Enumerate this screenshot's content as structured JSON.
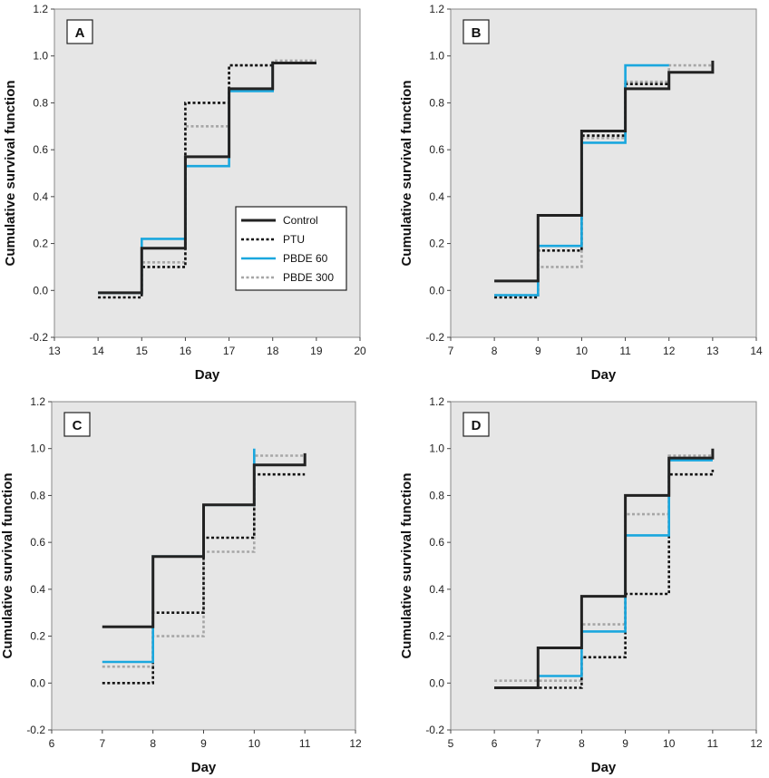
{
  "colors": {
    "plot_background": "#e6e6e6",
    "control": "#222222",
    "ptu": "#111111",
    "pbde60": "#1aa7de",
    "pbde300": "#a6a6a6"
  },
  "chart_data": [
    {
      "panel": "A",
      "type": "line",
      "step": true,
      "xlabel": "Day",
      "ylabel": "Cumulative survival function",
      "xlim": [
        13,
        20
      ],
      "ylim": [
        -0.2,
        1.2
      ],
      "xticks": [
        13,
        14,
        15,
        16,
        17,
        18,
        19,
        20
      ],
      "yticks": [
        "-0.2",
        "0.0",
        "0.2",
        "0.4",
        "0.6",
        "0.8",
        "1.0",
        "1.2"
      ],
      "legend": [
        "Control",
        "PTU",
        "PBDE 60",
        "PBDE 300"
      ],
      "legend_position": "lower-right",
      "series": [
        {
          "name": "Control",
          "x": [
            14,
            15,
            16,
            17,
            18,
            19
          ],
          "y": [
            -0.01,
            0.18,
            0.57,
            0.86,
            0.97,
            0.97
          ]
        },
        {
          "name": "PTU",
          "x": [
            14,
            15,
            16,
            17,
            18,
            19
          ],
          "y": [
            -0.03,
            0.1,
            0.8,
            0.96,
            0.97,
            0.97
          ]
        },
        {
          "name": "PBDE 60",
          "x": [
            14,
            15,
            16,
            17,
            18,
            19
          ],
          "y": [
            -0.01,
            0.22,
            0.53,
            0.85,
            0.97,
            0.97
          ]
        },
        {
          "name": "PBDE 300",
          "x": [
            14,
            15,
            16,
            17,
            18,
            19
          ],
          "y": [
            -0.01,
            0.12,
            0.7,
            0.96,
            0.98,
            0.98
          ]
        }
      ]
    },
    {
      "panel": "B",
      "type": "line",
      "step": true,
      "xlabel": "Day",
      "ylabel": "Cumulative survival function",
      "xlim": [
        7,
        14
      ],
      "ylim": [
        -0.2,
        1.2
      ],
      "xticks": [
        7,
        8,
        9,
        10,
        11,
        12,
        13,
        14
      ],
      "yticks": [
        "-0.2",
        "0.0",
        "0.2",
        "0.4",
        "0.6",
        "0.8",
        "1.0",
        "1.2"
      ],
      "series": [
        {
          "name": "Control",
          "x": [
            8,
            9,
            10,
            11,
            12,
            13
          ],
          "y": [
            0.04,
            0.32,
            0.68,
            0.86,
            0.93,
            0.98
          ]
        },
        {
          "name": "PTU",
          "x": [
            8,
            9,
            10,
            11,
            12
          ],
          "y": [
            -0.03,
            0.17,
            0.66,
            0.88,
            0.88
          ]
        },
        {
          "name": "PBDE 60",
          "x": [
            8,
            9,
            10,
            11,
            12
          ],
          "y": [
            -0.02,
            0.19,
            0.63,
            0.96,
            0.96
          ]
        },
        {
          "name": "PBDE 300",
          "x": [
            8,
            9,
            10,
            11,
            12,
            13
          ],
          "y": [
            -0.02,
            0.1,
            0.65,
            0.89,
            0.96,
            0.96
          ]
        }
      ]
    },
    {
      "panel": "C",
      "type": "line",
      "step": true,
      "xlabel": "Day",
      "ylabel": "Cumulative survival function",
      "xlim": [
        6,
        12
      ],
      "ylim": [
        -0.2,
        1.2
      ],
      "xticks": [
        6,
        7,
        8,
        9,
        10,
        11,
        12
      ],
      "yticks": [
        "-0.2",
        "0.0",
        "0.2",
        "0.4",
        "0.6",
        "0.8",
        "1.0",
        "1.2"
      ],
      "series": [
        {
          "name": "Control",
          "x": [
            7,
            8,
            9,
            10,
            11
          ],
          "y": [
            0.24,
            0.54,
            0.76,
            0.93,
            0.98
          ]
        },
        {
          "name": "PTU",
          "x": [
            7,
            8,
            9,
            10,
            11
          ],
          "y": [
            0.0,
            0.3,
            0.62,
            0.89,
            0.89
          ]
        },
        {
          "name": "PBDE 60",
          "x": [
            7,
            8,
            9,
            10
          ],
          "y": [
            0.09,
            0.54,
            0.76,
            1.0
          ]
        },
        {
          "name": "PBDE 300",
          "x": [
            7,
            8,
            9,
            10,
            11
          ],
          "y": [
            0.07,
            0.2,
            0.56,
            0.97,
            0.97
          ]
        }
      ]
    },
    {
      "panel": "D",
      "type": "line",
      "step": true,
      "xlabel": "Day",
      "ylabel": "Cumulative survival function",
      "xlim": [
        5,
        12
      ],
      "ylim": [
        -0.2,
        1.2
      ],
      "xticks": [
        5,
        6,
        7,
        8,
        9,
        10,
        11,
        12
      ],
      "yticks": [
        "-0.2",
        "0.0",
        "0.2",
        "0.4",
        "0.6",
        "0.8",
        "1.0",
        "1.2"
      ],
      "series": [
        {
          "name": "Control",
          "x": [
            6,
            7,
            8,
            9,
            10,
            11
          ],
          "y": [
            -0.02,
            0.15,
            0.37,
            0.8,
            0.96,
            1.0
          ]
        },
        {
          "name": "PTU",
          "x": [
            6,
            7,
            8,
            9,
            10,
            11
          ],
          "y": [
            -0.02,
            -0.02,
            0.11,
            0.38,
            0.89,
            0.91
          ]
        },
        {
          "name": "PBDE 60",
          "x": [
            7,
            8,
            9,
            10,
            11
          ],
          "y": [
            0.03,
            0.22,
            0.63,
            0.95,
            0.95
          ]
        },
        {
          "name": "PBDE 300",
          "x": [
            6,
            7,
            8,
            9,
            10,
            11
          ],
          "y": [
            0.01,
            0.01,
            0.25,
            0.72,
            0.97,
            0.97
          ]
        }
      ]
    }
  ]
}
